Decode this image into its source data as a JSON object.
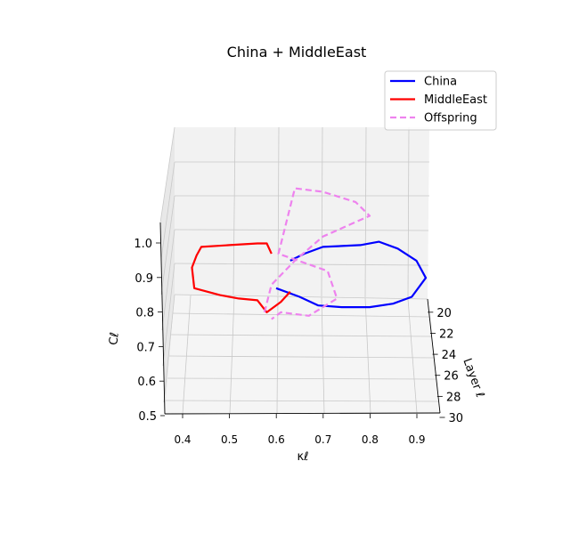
{
  "chart_data": {
    "type": "line",
    "title": "China + MiddleEast",
    "xlabel": "κℓ",
    "ylabel": "Layer ℓ",
    "zlabel": "Cℓ",
    "x_ticks": [
      "0.4",
      "0.5",
      "0.6",
      "0.7",
      "0.8",
      "0.9"
    ],
    "y_ticks": [
      "20",
      "22",
      "24",
      "26",
      "28",
      "30"
    ],
    "z_ticks": [
      "0.5",
      "0.6",
      "0.7",
      "0.8",
      "0.9",
      "1.0"
    ],
    "grid": true,
    "legend_position": "top-right",
    "series": [
      {
        "name": "China",
        "color": "#0000ff",
        "style": "solid",
        "points": [
          [
            0.63,
            20,
            0.95
          ],
          [
            0.66,
            20,
            0.97
          ],
          [
            0.7,
            20,
            0.99
          ],
          [
            0.78,
            20,
            0.995
          ],
          [
            0.82,
            20,
            1.005
          ],
          [
            0.86,
            20,
            0.985
          ],
          [
            0.9,
            20,
            0.95
          ],
          [
            0.92,
            20,
            0.9
          ],
          [
            0.89,
            20,
            0.845
          ],
          [
            0.85,
            20,
            0.825
          ],
          [
            0.8,
            20,
            0.815
          ],
          [
            0.74,
            20,
            0.815
          ],
          [
            0.69,
            20,
            0.82
          ],
          [
            0.65,
            20,
            0.845
          ],
          [
            0.6,
            20,
            0.87
          ]
        ]
      },
      {
        "name": "MiddleEast",
        "color": "#ff0000",
        "style": "solid",
        "points": [
          [
            0.59,
            20,
            0.97
          ],
          [
            0.58,
            20,
            1.0
          ],
          [
            0.56,
            20,
            1.0
          ],
          [
            0.5,
            20,
            0.995
          ],
          [
            0.44,
            20,
            0.99
          ],
          [
            0.43,
            20,
            0.965
          ],
          [
            0.42,
            20,
            0.93
          ],
          [
            0.425,
            20,
            0.87
          ],
          [
            0.48,
            20,
            0.85
          ],
          [
            0.52,
            20,
            0.84
          ],
          [
            0.56,
            20,
            0.835
          ],
          [
            0.58,
            20,
            0.8
          ],
          [
            0.61,
            20,
            0.83
          ],
          [
            0.63,
            20,
            0.86
          ]
        ]
      },
      {
        "name": "Offspring",
        "color": "#ee82ee",
        "style": "dashed",
        "points": [
          [
            0.575,
            26,
            0.8
          ],
          [
            0.59,
            26,
            0.88
          ],
          [
            0.64,
            26,
            0.95
          ],
          [
            0.7,
            26,
            1.02
          ],
          [
            0.8,
            26,
            1.08
          ],
          [
            0.77,
            26,
            1.12
          ],
          [
            0.7,
            26,
            1.15
          ],
          [
            0.64,
            26,
            1.16
          ],
          [
            0.605,
            26,
            0.97
          ],
          [
            0.71,
            26,
            0.92
          ],
          [
            0.73,
            26,
            0.84
          ],
          [
            0.67,
            26,
            0.79
          ],
          [
            0.61,
            26,
            0.8
          ],
          [
            0.59,
            26,
            0.78
          ]
        ]
      }
    ]
  }
}
